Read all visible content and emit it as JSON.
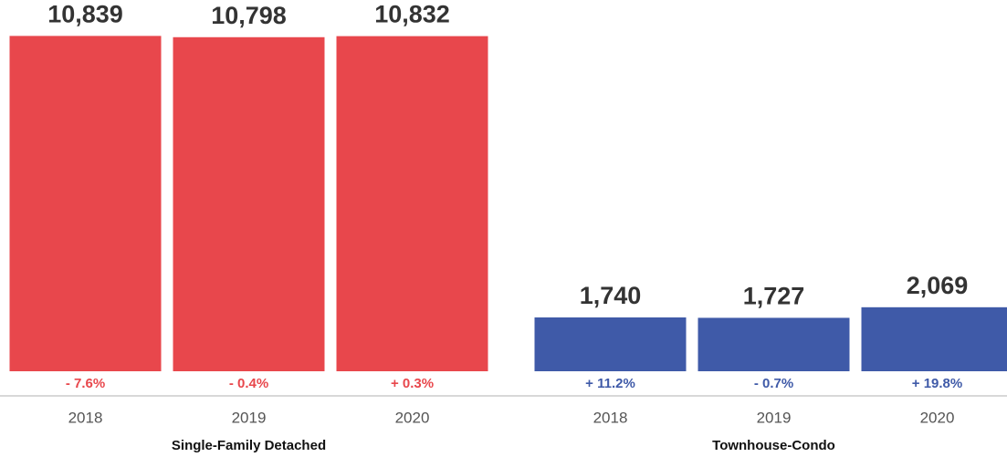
{
  "chart_data": [
    {
      "type": "bar",
      "title": "Single-Family Detached",
      "categories": [
        "2018",
        "2019",
        "2020"
      ],
      "values": [
        10839,
        10798,
        10832
      ],
      "value_labels": [
        "10,839",
        "10,798",
        "10,832"
      ],
      "annotations": [
        "- 7.6%",
        "- 0.4%",
        "+ 0.3%"
      ],
      "color": "#e8474c",
      "ylim": [
        0,
        12000
      ]
    },
    {
      "type": "bar",
      "title": "Townhouse-Condo",
      "categories": [
        "2018",
        "2019",
        "2020"
      ],
      "values": [
        1740,
        1727,
        2069
      ],
      "value_labels": [
        "1,740",
        "1,727",
        "2,069"
      ],
      "annotations": [
        "+ 11.2%",
        "- 0.7%",
        "+ 19.8%"
      ],
      "color": "#3f5aa8",
      "ylim": [
        0,
        12000
      ]
    }
  ]
}
